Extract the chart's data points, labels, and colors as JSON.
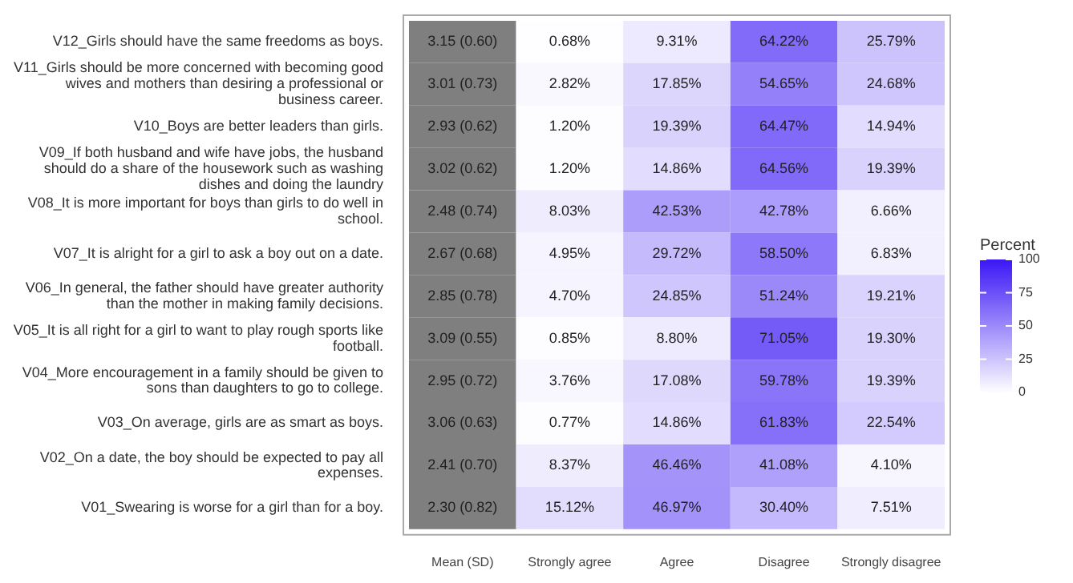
{
  "chart_data": {
    "type": "heatmap",
    "categories": [
      "Mean (SD)",
      "Strongly agree",
      "Agree",
      "Disagree",
      "Strongly disagree"
    ],
    "y_categories": [
      "V12_Girls should have the same freedoms as boys.",
      "V11_Girls should be more concerned with becoming good wives and mothers than desiring a professional or business career.",
      "V10_Boys are better leaders than girls.",
      "V09_If both husband and wife have jobs, the husband should do a share of the housework such as washing dishes and doing the laundry",
      "V08_It is more important for boys than girls to do well in school.",
      "V07_It is alright for a girl to ask a boy out on a date.",
      "V06_In general, the father should have greater authority than the mother in making family decisions.",
      "V05_It is all right for a girl to want to play rough sports like football.",
      "V04_More encouragement in a family should be given to sons than daughters to go to college.",
      "V03_On average, girls are as smart as boys.",
      "V02_On a date, the boy should be expected to pay all expenses.",
      "V01_Swearing is worse for a girl than for a boy."
    ],
    "cells": [
      [
        null,
        0.68,
        9.31,
        64.22,
        25.79
      ],
      [
        null,
        2.82,
        17.85,
        54.65,
        24.68
      ],
      [
        null,
        1.2,
        19.39,
        64.47,
        14.94
      ],
      [
        null,
        1.2,
        14.86,
        64.56,
        19.39
      ],
      [
        null,
        8.03,
        42.53,
        42.78,
        6.66
      ],
      [
        null,
        4.95,
        29.72,
        58.5,
        6.83
      ],
      [
        null,
        4.7,
        24.85,
        51.24,
        19.21
      ],
      [
        null,
        0.85,
        8.8,
        71.05,
        19.3
      ],
      [
        null,
        3.76,
        17.08,
        59.78,
        19.39
      ],
      [
        null,
        0.77,
        14.86,
        61.83,
        22.54
      ],
      [
        null,
        8.37,
        46.46,
        41.08,
        4.1
      ],
      [
        null,
        15.12,
        46.97,
        30.4,
        7.51
      ]
    ],
    "cell_labels": [
      [
        "3.15 (0.60)",
        "0.68%",
        "9.31%",
        "64.22%",
        "25.79%"
      ],
      [
        "3.01 (0.73)",
        "2.82%",
        "17.85%",
        "54.65%",
        "24.68%"
      ],
      [
        "2.93 (0.62)",
        "1.20%",
        "19.39%",
        "64.47%",
        "14.94%"
      ],
      [
        "3.02 (0.62)",
        "1.20%",
        "14.86%",
        "64.56%",
        "19.39%"
      ],
      [
        "2.48 (0.74)",
        "8.03%",
        "42.53%",
        "42.78%",
        "6.66%"
      ],
      [
        "2.67 (0.68)",
        "4.95%",
        "29.72%",
        "58.50%",
        "6.83%"
      ],
      [
        "2.85 (0.78)",
        "4.70%",
        "24.85%",
        "51.24%",
        "19.21%"
      ],
      [
        "3.09 (0.55)",
        "0.85%",
        "8.80%",
        "71.05%",
        "19.30%"
      ],
      [
        "2.95 (0.72)",
        "3.76%",
        "17.08%",
        "59.78%",
        "19.39%"
      ],
      [
        "3.06 (0.63)",
        "0.77%",
        "14.86%",
        "61.83%",
        "22.54%"
      ],
      [
        "2.41 (0.70)",
        "8.37%",
        "46.46%",
        "41.08%",
        "4.10%"
      ],
      [
        "2.30 (0.82)",
        "15.12%",
        "46.97%",
        "30.40%",
        "7.51%"
      ]
    ],
    "colors": [
      "#7f7f7f",
      null,
      null,
      null,
      null
    ],
    "clabel": "Percent",
    "clim": [
      0,
      100
    ],
    "cticks": [
      0,
      25,
      50,
      75,
      100
    ]
  }
}
